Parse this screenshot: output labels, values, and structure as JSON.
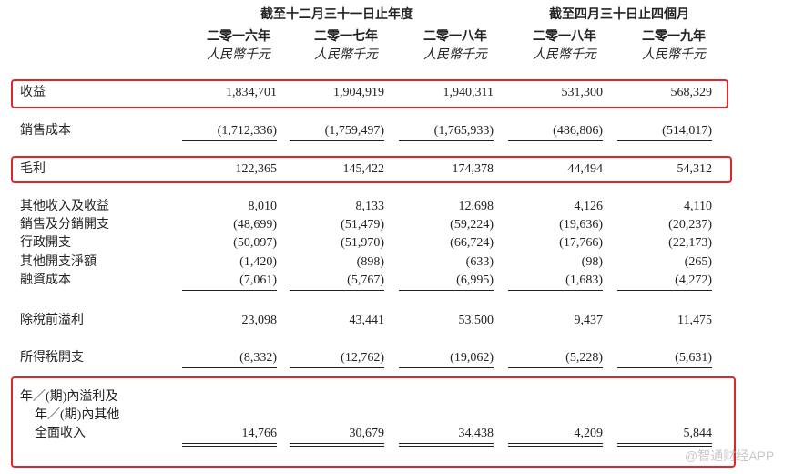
{
  "table": {
    "group_headers": [
      "截至十二月三十一日止年度",
      "截至四月三十日止四個月"
    ],
    "years": [
      "二零一六年",
      "二零一七年",
      "二零一八年",
      "二零一八年",
      "二零一九年"
    ],
    "units": [
      "人民幣千元",
      "人民幣千元",
      "人民幣千元",
      "人民幣千元",
      "人民幣千元"
    ],
    "rows": [
      {
        "label": "收益",
        "values": [
          "1,834,701",
          "1,904,919",
          "1,940,311",
          "531,300",
          "568,329"
        ]
      },
      {
        "label": "銷售成本",
        "values": [
          "(1,712,336)",
          "(1,759,497)",
          "(1,765,933)",
          "(486,806)",
          "(514,017)"
        ]
      },
      {
        "label": "毛利",
        "values": [
          "122,365",
          "145,422",
          "174,378",
          "44,494",
          "54,312"
        ]
      },
      {
        "label": "其他收入及收益",
        "values": [
          "8,010",
          "8,133",
          "12,698",
          "4,126",
          "4,110"
        ]
      },
      {
        "label": "銷售及分銷開支",
        "values": [
          "(48,699)",
          "(51,479)",
          "(59,224)",
          "(19,636)",
          "(20,237)"
        ]
      },
      {
        "label": "行政開支",
        "values": [
          "(50,097)",
          "(51,970)",
          "(66,724)",
          "(17,766)",
          "(22,173)"
        ]
      },
      {
        "label": "其他開支淨額",
        "values": [
          "(1,420)",
          "(898)",
          "(633)",
          "(98)",
          "(265)"
        ]
      },
      {
        "label": "融資成本",
        "values": [
          "(7,061)",
          "(5,767)",
          "(6,995)",
          "(1,683)",
          "(4,272)"
        ]
      },
      {
        "label": "除稅前溢利",
        "values": [
          "23,098",
          "43,441",
          "53,500",
          "9,437",
          "11,475"
        ]
      },
      {
        "label": "所得稅開支",
        "values": [
          "(8,332)",
          "(12,762)",
          "(19,062)",
          "(5,228)",
          "(5,631)"
        ]
      },
      {
        "label": [
          "年／(期)內溢利及",
          "年／(期)內其他",
          "全面收入"
        ],
        "values": [
          "14,766",
          "30,679",
          "34,438",
          "4,209",
          "5,844"
        ]
      }
    ]
  },
  "watermark": "@智通财经APP"
}
